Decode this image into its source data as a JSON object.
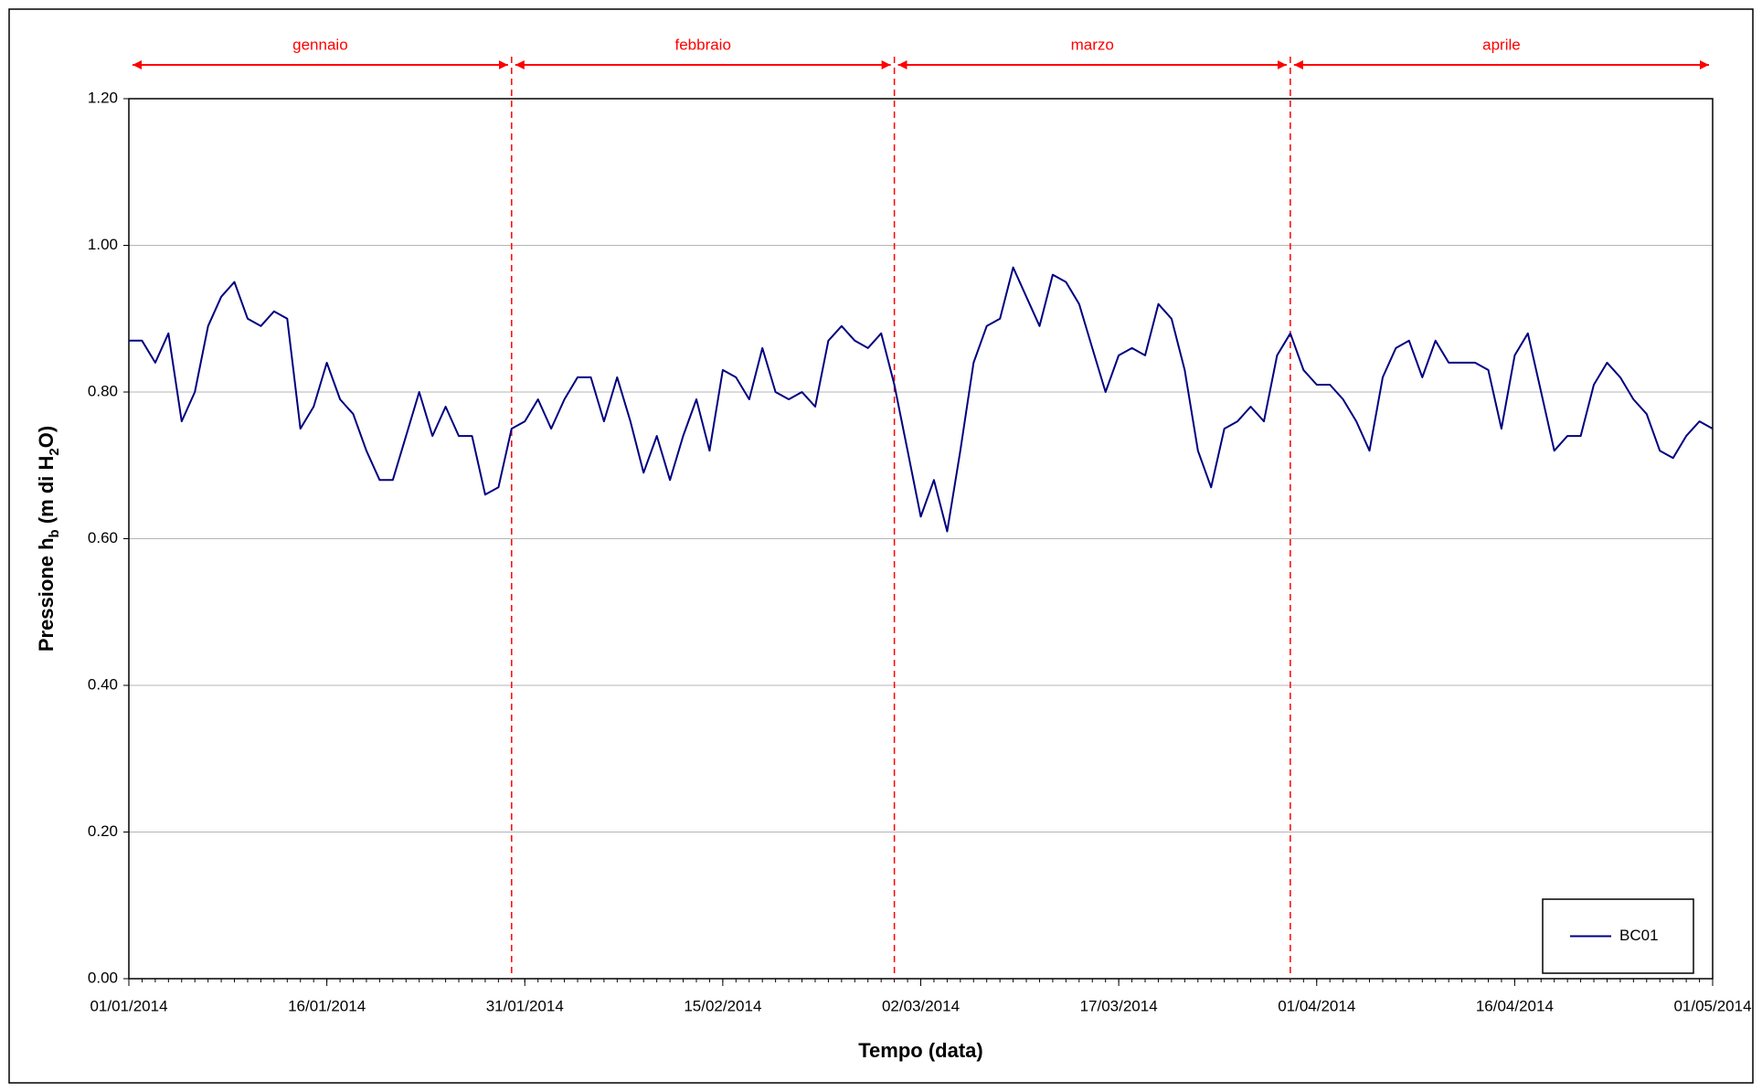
{
  "chart_data": {
    "type": "line",
    "x_label": "Tempo (data)",
    "y_label_parts": [
      "Pressione h",
      "b",
      " (m di H",
      "2",
      "O)"
    ],
    "x": [
      "01/01/2014",
      "02/01/2014",
      "03/01/2014",
      "04/01/2014",
      "05/01/2014",
      "06/01/2014",
      "07/01/2014",
      "08/01/2014",
      "09/01/2014",
      "10/01/2014",
      "11/01/2014",
      "12/01/2014",
      "13/01/2014",
      "14/01/2014",
      "15/01/2014",
      "16/01/2014",
      "17/01/2014",
      "18/01/2014",
      "19/01/2014",
      "20/01/2014",
      "21/01/2014",
      "22/01/2014",
      "23/01/2014",
      "24/01/2014",
      "25/01/2014",
      "26/01/2014",
      "27/01/2014",
      "28/01/2014",
      "29/01/2014",
      "30/01/2014",
      "31/01/2014",
      "01/02/2014",
      "02/02/2014",
      "03/02/2014",
      "04/02/2014",
      "05/02/2014",
      "06/02/2014",
      "07/02/2014",
      "08/02/2014",
      "09/02/2014",
      "10/02/2014",
      "11/02/2014",
      "12/02/2014",
      "13/02/2014",
      "14/02/2014",
      "15/02/2014",
      "16/02/2014",
      "17/02/2014",
      "18/02/2014",
      "19/02/2014",
      "20/02/2014",
      "21/02/2014",
      "22/02/2014",
      "23/02/2014",
      "24/02/2014",
      "25/02/2014",
      "26/02/2014",
      "27/02/2014",
      "28/02/2014",
      "01/03/2014",
      "02/03/2014",
      "03/03/2014",
      "04/03/2014",
      "05/03/2014",
      "06/03/2014",
      "07/03/2014",
      "08/03/2014",
      "09/03/2014",
      "10/03/2014",
      "11/03/2014",
      "12/03/2014",
      "13/03/2014",
      "14/03/2014",
      "15/03/2014",
      "16/03/2014",
      "17/03/2014",
      "18/03/2014",
      "19/03/2014",
      "20/03/2014",
      "21/03/2014",
      "22/03/2014",
      "23/03/2014",
      "24/03/2014",
      "25/03/2014",
      "26/03/2014",
      "27/03/2014",
      "28/03/2014",
      "29/03/2014",
      "30/03/2014",
      "31/03/2014",
      "01/04/2014",
      "02/04/2014",
      "03/04/2014",
      "04/04/2014",
      "05/04/2014",
      "06/04/2014",
      "07/04/2014",
      "08/04/2014",
      "09/04/2014",
      "10/04/2014",
      "11/04/2014",
      "12/04/2014",
      "13/04/2014",
      "14/04/2014",
      "15/04/2014",
      "16/04/2014",
      "17/04/2014",
      "18/04/2014",
      "19/04/2014",
      "20/04/2014",
      "21/04/2014",
      "22/04/2014",
      "23/04/2014",
      "24/04/2014",
      "25/04/2014",
      "26/04/2014",
      "27/04/2014",
      "28/04/2014",
      "29/04/2014",
      "30/04/2014",
      "01/05/2014"
    ],
    "series": [
      {
        "name": "BC01",
        "color": "#000080",
        "values": [
          0.87,
          0.87,
          0.84,
          0.88,
          0.76,
          0.8,
          0.89,
          0.93,
          0.95,
          0.9,
          0.89,
          0.91,
          0.9,
          0.75,
          0.78,
          0.84,
          0.79,
          0.77,
          0.72,
          0.68,
          0.68,
          0.74,
          0.8,
          0.74,
          0.78,
          0.74,
          0.74,
          0.66,
          0.67,
          0.75,
          0.76,
          0.79,
          0.75,
          0.79,
          0.82,
          0.82,
          0.76,
          0.82,
          0.76,
          0.69,
          0.74,
          0.68,
          0.74,
          0.79,
          0.72,
          0.83,
          0.82,
          0.79,
          0.86,
          0.8,
          0.79,
          0.8,
          0.78,
          0.87,
          0.89,
          0.87,
          0.86,
          0.88,
          0.81,
          0.72,
          0.63,
          0.68,
          0.61,
          0.72,
          0.84,
          0.89,
          0.9,
          0.97,
          0.93,
          0.89,
          0.96,
          0.95,
          0.92,
          0.86,
          0.8,
          0.85,
          0.86,
          0.85,
          0.92,
          0.9,
          0.83,
          0.72,
          0.67,
          0.75,
          0.76,
          0.78,
          0.76,
          0.85,
          0.88,
          0.83,
          0.81,
          0.81,
          0.79,
          0.76,
          0.72,
          0.82,
          0.86,
          0.87,
          0.82,
          0.87,
          0.84,
          0.84,
          0.84,
          0.83,
          0.75,
          0.85,
          0.88,
          0.8,
          0.72,
          0.74,
          0.74,
          0.81,
          0.84,
          0.82,
          0.79,
          0.77,
          0.72,
          0.71,
          0.74,
          0.76,
          0.75
        ]
      }
    ],
    "xlim": [
      "01/01/2014",
      "01/05/2014"
    ],
    "xticks": [
      "01/01/2014",
      "16/01/2014",
      "31/01/2014",
      "15/02/2014",
      "02/03/2014",
      "17/03/2014",
      "01/04/2014",
      "16/04/2014",
      "01/05/2014"
    ],
    "ylim": [
      0,
      1.2
    ],
    "yticks": [
      {
        "value": 0,
        "label": "0.00"
      },
      {
        "value": 0.2,
        "label": "0.20"
      },
      {
        "value": 0.4,
        "label": "0.40"
      },
      {
        "value": 0.6,
        "label": "0.60"
      },
      {
        "value": 0.8,
        "label": "0.80"
      },
      {
        "value": 1,
        "label": "1.00"
      },
      {
        "value": 1.2,
        "label": "1.20"
      }
    ],
    "grid": true,
    "legend": "bottom-right",
    "periods": [
      {
        "label": "gennaio",
        "start": "01/01/2014",
        "end": "30/01/2014"
      },
      {
        "label": "febbraio",
        "start": "30/01/2014",
        "end": "28/02/2014"
      },
      {
        "label": "marzo",
        "start": "28/02/2014",
        "end": "30/03/2014"
      },
      {
        "label": "aprile",
        "start": "30/03/2014",
        "end": "01/05/2014"
      }
    ],
    "period_color": "#ff0000"
  }
}
